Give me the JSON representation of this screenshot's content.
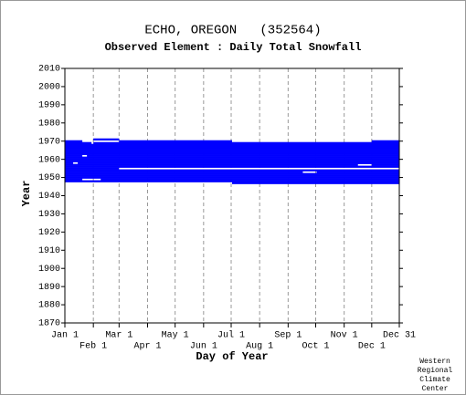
{
  "chart_data": {
    "type": "availability",
    "title": "ECHO, OREGON   (352564)",
    "subtitle": "Observed Element : Daily Total Snowfall",
    "x_label": "Day of Year",
    "y_label": "Year",
    "credit": [
      "Western",
      "Regional",
      "Climate",
      "Center"
    ],
    "color": "#0000ff",
    "xlim": [
      1,
      365
    ],
    "xticks": [
      {
        "value": 1,
        "label": "Jan 1"
      },
      {
        "value": 32,
        "label": "Feb 1"
      },
      {
        "value": 60,
        "label": "Mar 1"
      },
      {
        "value": 91,
        "label": "Apr 1"
      },
      {
        "value": 121,
        "label": "May 1"
      },
      {
        "value": 152,
        "label": "Jun 1"
      },
      {
        "value": 182,
        "label": "Jul 1"
      },
      {
        "value": 213,
        "label": "Aug 1"
      },
      {
        "value": 244,
        "label": "Sep 1"
      },
      {
        "value": 274,
        "label": "Oct 1"
      },
      {
        "value": 305,
        "label": "Nov 1"
      },
      {
        "value": 335,
        "label": "Dec 1"
      },
      {
        "value": 365,
        "label": "Dec 31"
      }
    ],
    "ylim": [
      1870,
      2010
    ],
    "yticks": [
      1870,
      1880,
      1890,
      1900,
      1910,
      1920,
      1930,
      1940,
      1950,
      1960,
      1970,
      1980,
      1990,
      2000,
      2010
    ],
    "grid": true,
    "rows": [
      {
        "year": 1971,
        "spans": [
          [
            32,
            60
          ]
        ]
      },
      {
        "year": 1970,
        "spans": [
          [
            1,
            20
          ],
          [
            60,
            183
          ],
          [
            335,
            365
          ]
        ]
      },
      {
        "year": 1969,
        "spans": [
          [
            1,
            30
          ],
          [
            32,
            365
          ]
        ]
      },
      {
        "year": 1968,
        "spans": [
          [
            1,
            365
          ]
        ]
      },
      {
        "year": 1967,
        "spans": [
          [
            1,
            365
          ]
        ]
      },
      {
        "year": 1966,
        "spans": [
          [
            1,
            365
          ]
        ]
      },
      {
        "year": 1965,
        "spans": [
          [
            1,
            365
          ]
        ]
      },
      {
        "year": 1964,
        "spans": [
          [
            1,
            365
          ]
        ]
      },
      {
        "year": 1963,
        "spans": [
          [
            1,
            365
          ]
        ]
      },
      {
        "year": 1962,
        "spans": [
          [
            1,
            20
          ],
          [
            25,
            365
          ]
        ]
      },
      {
        "year": 1961,
        "spans": [
          [
            1,
            365
          ]
        ]
      },
      {
        "year": 1960,
        "spans": [
          [
            1,
            365
          ]
        ]
      },
      {
        "year": 1959,
        "spans": [
          [
            1,
            365
          ]
        ]
      },
      {
        "year": 1958,
        "spans": [
          [
            1,
            10
          ],
          [
            15,
            365
          ]
        ]
      },
      {
        "year": 1957,
        "spans": [
          [
            1,
            320
          ],
          [
            335,
            365
          ]
        ]
      },
      {
        "year": 1956,
        "spans": [
          [
            1,
            365
          ]
        ]
      },
      {
        "year": 1955,
        "spans": [
          [
            1,
            60
          ]
        ]
      },
      {
        "year": 1954,
        "spans": [
          [
            1,
            365
          ]
        ]
      },
      {
        "year": 1953,
        "spans": [
          [
            1,
            260
          ],
          [
            275,
            365
          ]
        ]
      },
      {
        "year": 1952,
        "spans": [
          [
            1,
            365
          ]
        ]
      },
      {
        "year": 1951,
        "spans": [
          [
            1,
            365
          ]
        ]
      },
      {
        "year": 1950,
        "spans": [
          [
            1,
            365
          ]
        ]
      },
      {
        "year": 1949,
        "spans": [
          [
            1,
            20
          ],
          [
            40,
            365
          ]
        ]
      },
      {
        "year": 1948,
        "spans": [
          [
            1,
            365
          ]
        ]
      },
      {
        "year": 1947,
        "spans": [
          [
            183,
            365
          ]
        ]
      }
    ]
  }
}
